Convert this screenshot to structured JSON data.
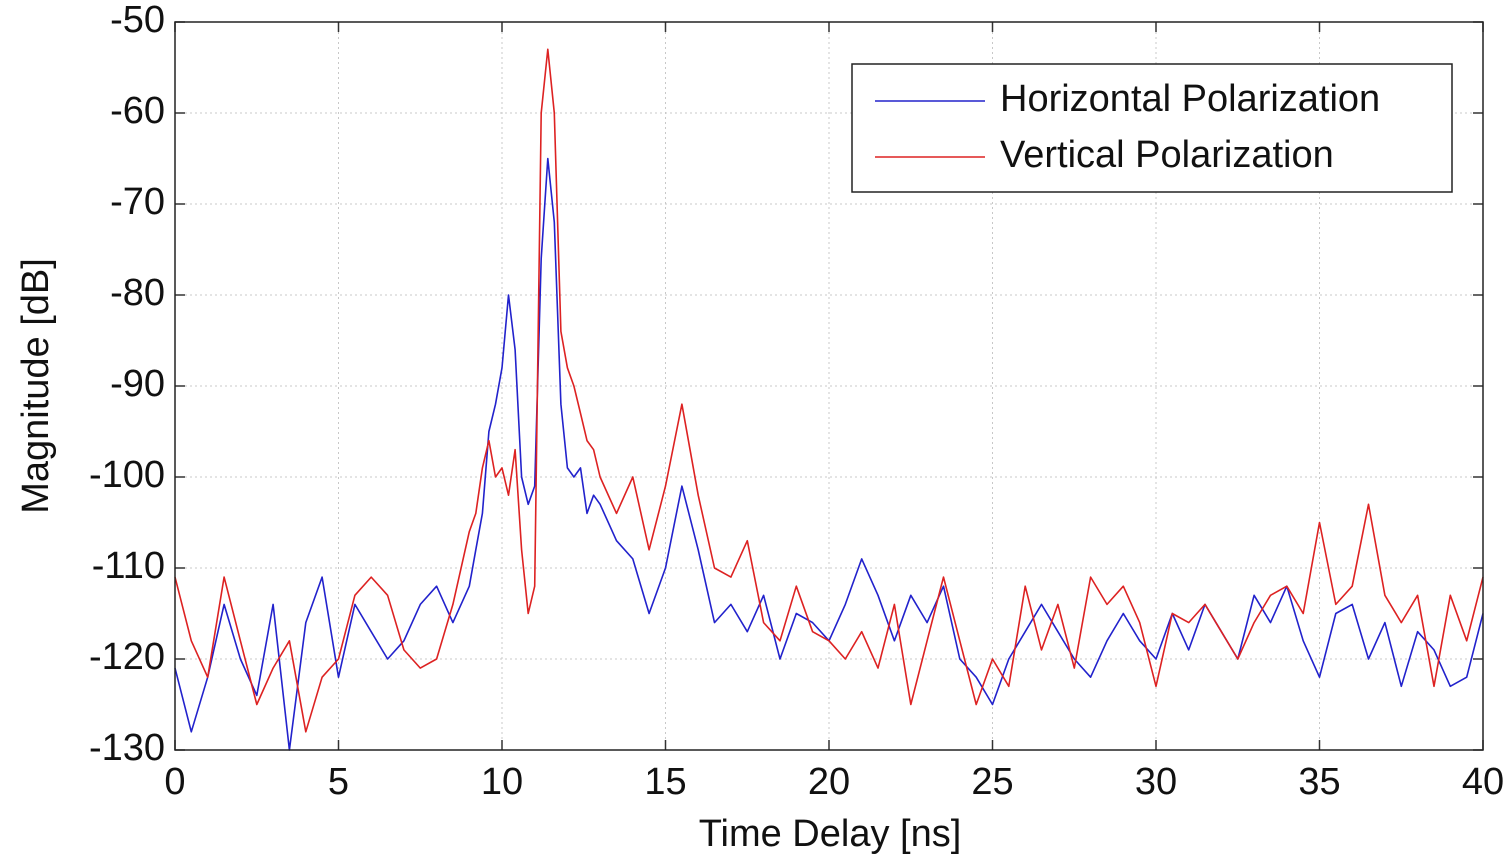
{
  "chart_data": {
    "type": "line",
    "xlabel": "Time Delay [ns]",
    "ylabel": "Magnitude [dB]",
    "x": [
      0,
      0.5,
      1,
      1.5,
      2,
      2.5,
      3,
      3.5,
      4,
      4.5,
      5,
      5.5,
      6,
      6.5,
      7,
      7.5,
      8,
      8.5,
      9,
      9.2,
      9.4,
      9.6,
      9.8,
      10,
      10.2,
      10.4,
      10.6,
      10.8,
      11,
      11.2,
      11.4,
      11.6,
      11.8,
      12,
      12.2,
      12.4,
      12.6,
      12.8,
      13,
      13.5,
      14,
      14.5,
      15,
      15.5,
      16,
      16.5,
      17,
      17.5,
      18,
      18.5,
      19,
      19.5,
      20,
      20.5,
      21,
      21.5,
      22,
      22.5,
      23,
      23.5,
      24,
      24.5,
      25,
      25.5,
      26,
      26.5,
      27,
      27.5,
      28,
      28.5,
      29,
      29.5,
      30,
      30.5,
      31,
      31.5,
      32,
      32.5,
      33,
      33.5,
      34,
      34.5,
      35,
      35.5,
      36,
      36.5,
      37,
      37.5,
      38,
      38.5,
      39,
      39.5,
      40
    ],
    "series": [
      {
        "name": "Horizontal Polarization",
        "color": "#2222cc",
        "values": [
          -121,
          -128,
          -122,
          -114,
          -120,
          -124,
          -114,
          -130,
          -116,
          -111,
          -122,
          -114,
          -117,
          -120,
          -118,
          -114,
          -112,
          -116,
          -112,
          -108,
          -104,
          -95,
          -92,
          -88,
          -80,
          -86,
          -100,
          -103,
          -101,
          -76,
          -65,
          -72,
          -92,
          -99,
          -100,
          -99,
          -104,
          -102,
          -103,
          -107,
          -109,
          -115,
          -110,
          -101,
          -108,
          -116,
          -114,
          -117,
          -113,
          -120,
          -115,
          -116,
          -118,
          -114,
          -109,
          -113,
          -118,
          -113,
          -116,
          -112,
          -120,
          -122,
          -125,
          -120,
          -117,
          -114,
          -117,
          -120,
          -122,
          -118,
          -115,
          -118,
          -120,
          -115,
          -119,
          -114,
          -117,
          -120,
          -113,
          -116,
          -112,
          -118,
          -122,
          -115,
          -114,
          -120,
          -116,
          -123,
          -117,
          -119,
          -123,
          -122,
          -115
        ]
      },
      {
        "name": "Vertical Polarization",
        "color": "#dd2222",
        "values": [
          -111,
          -118,
          -122,
          -111,
          -118,
          -125,
          -121,
          -118,
          -128,
          -122,
          -120,
          -113,
          -111,
          -113,
          -119,
          -121,
          -120,
          -114,
          -106,
          -104,
          -99,
          -96,
          -100,
          -99,
          -102,
          -97,
          -108,
          -115,
          -112,
          -60,
          -53,
          -60,
          -84,
          -88,
          -90,
          -93,
          -96,
          -97,
          -100,
          -104,
          -100,
          -108,
          -101,
          -92,
          -102,
          -110,
          -111,
          -107,
          -116,
          -118,
          -112,
          -117,
          -118,
          -120,
          -117,
          -121,
          -114,
          -125,
          -118,
          -111,
          -118,
          -125,
          -120,
          -123,
          -112,
          -119,
          -114,
          -121,
          -111,
          -114,
          -112,
          -116,
          -123,
          -115,
          -116,
          -114,
          -117,
          -120,
          -116,
          -113,
          -112,
          -115,
          -105,
          -114,
          -112,
          -103,
          -113,
          -116,
          -113,
          -123,
          -113,
          -118,
          -111
        ]
      }
    ],
    "xlim": [
      0,
      40
    ],
    "ylim": [
      -130,
      -50
    ],
    "xticks": [
      0,
      5,
      10,
      15,
      20,
      25,
      30,
      35,
      40
    ],
    "yticks": [
      -130,
      -120,
      -110,
      -100,
      -90,
      -80,
      -70,
      -60,
      -50
    ],
    "grid": true,
    "legend": "upper right"
  }
}
